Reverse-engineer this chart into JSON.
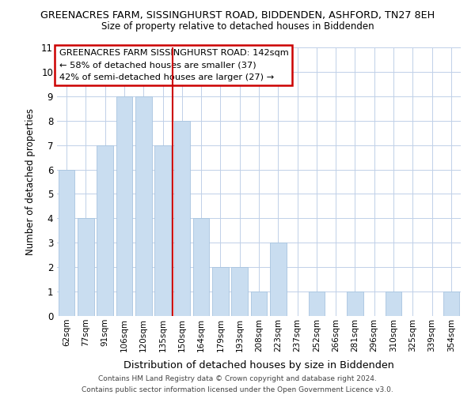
{
  "title_line1": "GREENACRES FARM, SISSINGHURST ROAD, BIDDENDEN, ASHFORD, TN27 8EH",
  "title_line2": "Size of property relative to detached houses in Biddenden",
  "xlabel": "Distribution of detached houses by size in Biddenden",
  "ylabel": "Number of detached properties",
  "bar_labels": [
    "62sqm",
    "77sqm",
    "91sqm",
    "106sqm",
    "120sqm",
    "135sqm",
    "150sqm",
    "164sqm",
    "179sqm",
    "193sqm",
    "208sqm",
    "223sqm",
    "237sqm",
    "252sqm",
    "266sqm",
    "281sqm",
    "296sqm",
    "310sqm",
    "325sqm",
    "339sqm",
    "354sqm"
  ],
  "bar_values": [
    6,
    4,
    7,
    9,
    9,
    7,
    8,
    4,
    2,
    2,
    1,
    3,
    0,
    1,
    0,
    1,
    0,
    1,
    0,
    0,
    1
  ],
  "bar_color": "#c9ddf0",
  "bar_edge_color": "#a8c4e0",
  "ref_line_x": 5.5,
  "ref_line_color": "#cc0000",
  "annotation_title": "GREENACRES FARM SISSINGHURST ROAD: 142sqm",
  "annotation_line1": "← 58% of detached houses are smaller (37)",
  "annotation_line2": "42% of semi-detached houses are larger (27) →",
  "annotation_box_color": "#ffffff",
  "annotation_box_edge": "#cc0000",
  "ylim": [
    0,
    11
  ],
  "yticks": [
    0,
    1,
    2,
    3,
    4,
    5,
    6,
    7,
    8,
    9,
    10,
    11
  ],
  "footer_line1": "Contains HM Land Registry data © Crown copyright and database right 2024.",
  "footer_line2": "Contains public sector information licensed under the Open Government Licence v3.0.",
  "background_color": "#ffffff",
  "grid_color": "#c0d0e8"
}
